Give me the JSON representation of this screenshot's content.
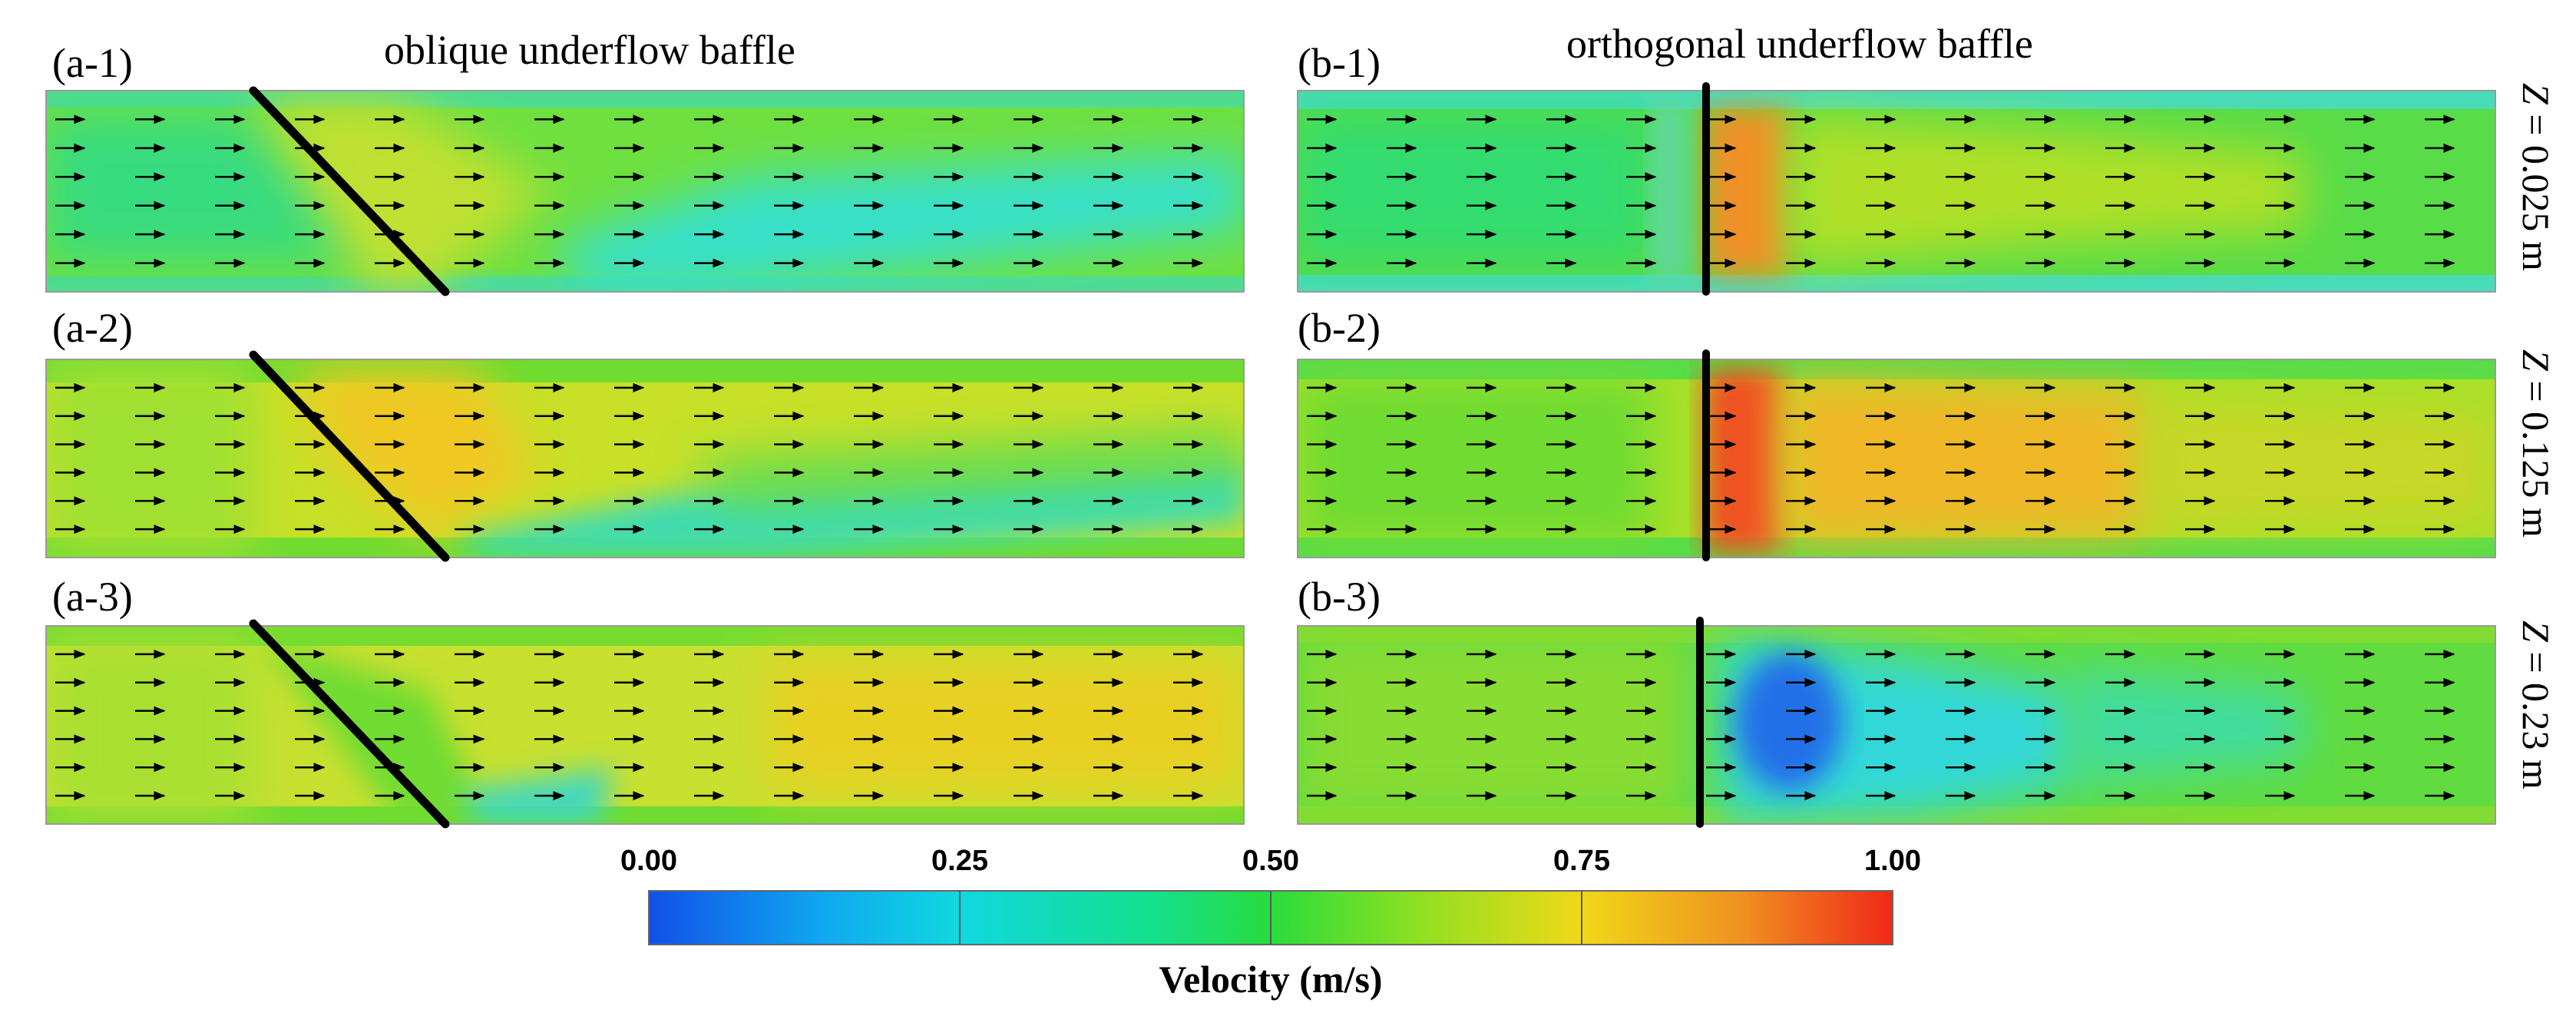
{
  "columns": {
    "left_title": "oblique underflow baffle",
    "right_title": "orthogonal underflow baffle"
  },
  "panels": [
    {
      "label": "(a-1)",
      "baffle": "oblique",
      "z_value": "0.025 m",
      "field": "a1"
    },
    {
      "label": "(a-2)",
      "baffle": "oblique",
      "z_value": "0.125 m",
      "field": "a2"
    },
    {
      "label": "(a-3)",
      "baffle": "oblique",
      "z_value": "0.23 m",
      "field": "a3"
    },
    {
      "label": "(b-1)",
      "baffle": "orthogonal",
      "z_value": "0.025 m",
      "field": "b1"
    },
    {
      "label": "(b-2)",
      "baffle": "orthogonal",
      "z_value": "0.125 m",
      "field": "b2"
    },
    {
      "label": "(b-3)",
      "baffle": "orthogonal",
      "z_value": "0.23 m",
      "field": "b3"
    }
  ],
  "z_labels": [
    {
      "prefix": "Z",
      "eq": " = ",
      "value": "0.025 m"
    },
    {
      "prefix": "Z",
      "eq": " = ",
      "value": "0.125 m"
    },
    {
      "prefix": "Z",
      "eq": " = ",
      "value": "0.23 m"
    }
  ],
  "colorbar": {
    "title": "Velocity (m/s)",
    "ticks": [
      "0.00",
      "0.25",
      "0.50",
      "0.75",
      "1.00"
    ],
    "min": 0,
    "max": 1,
    "colors": [
      "#1050e8",
      "#10c8e8",
      "#18e070",
      "#50d820",
      "#a8e020",
      "#f0d020",
      "#f08020",
      "#f02020"
    ]
  },
  "palette": {
    "baffle": "#000000",
    "arrow": "#000000"
  }
}
